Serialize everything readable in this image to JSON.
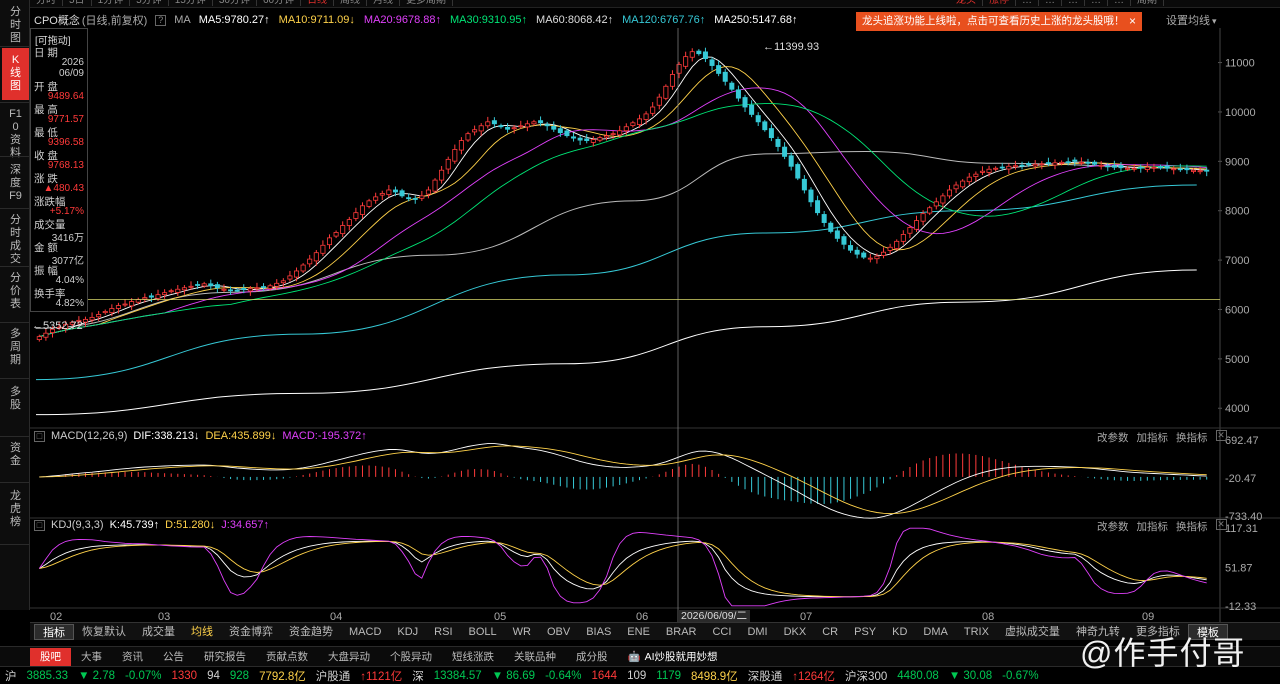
{
  "top_tabs": [
    "分时",
    "5日",
    "1分钟",
    "5分钟",
    "15分钟",
    "30分钟",
    "60分钟",
    "日线",
    "周线",
    "月线",
    "更多周期"
  ],
  "top_tabs_active": 7,
  "right_tabs": [
    "龙头",
    "涨停",
    "…",
    "…",
    "…",
    "…",
    "…",
    "周期"
  ],
  "left_nav": [
    {
      "label": "分时图",
      "active": false
    },
    {
      "label": "K线图",
      "active": true
    },
    {
      "label": "F10资料",
      "active": false
    },
    {
      "label": "深度F9",
      "active": false
    },
    {
      "label": "分时成交",
      "active": false
    },
    {
      "label": "分价表",
      "active": false
    },
    {
      "label": "多周期",
      "active": false
    },
    {
      "label": "多股",
      "active": false
    },
    {
      "label": "资金",
      "active": false
    },
    {
      "label": "龙虎榜",
      "active": false
    }
  ],
  "ma_legend": {
    "name": "CPO概念",
    "mode": "(日线,前复权)",
    "ma_label": "MA",
    "items": [
      {
        "text": "MA5:9780.27",
        "arrow": "↑",
        "color": "#ffffff"
      },
      {
        "text": "MA10:9711.09",
        "arrow": "↓",
        "color": "#ffd24a"
      },
      {
        "text": "MA20:9678.88",
        "arrow": "↑",
        "color": "#e040fb"
      },
      {
        "text": "MA30:9310.95",
        "arrow": "↑",
        "color": "#00e676"
      },
      {
        "text": "MA60:8068.42",
        "arrow": "↑",
        "color": "#dddddd"
      },
      {
        "text": "MA120:6767.76",
        "arrow": "↑",
        "color": "#36c9d6"
      },
      {
        "text": "MA250:5147.68",
        "arrow": "↑",
        "color": "#ffffff"
      }
    ]
  },
  "notice": {
    "text": "龙头追涨功能上线啦，点击可查看历史上涨的龙头股哦！",
    "close": "×"
  },
  "set_ma": "设置均线",
  "infobox": {
    "badge": "[可拖动]",
    "rows": [
      {
        "label": "日 期",
        "value": "2026",
        "value2": "06/09",
        "color": "white"
      },
      {
        "label": "开 盘",
        "value": "9489.64",
        "color": "red"
      },
      {
        "label": "最 高",
        "value": "9771.57",
        "color": "red"
      },
      {
        "label": "最 低",
        "value": "9396.58",
        "color": "red"
      },
      {
        "label": "收 盘",
        "value": "9768.13",
        "color": "red"
      },
      {
        "label": "涨 跌",
        "value": "▲480.43",
        "color": "red"
      },
      {
        "label": "涨跌幅",
        "value": "+5.17%",
        "color": "red"
      },
      {
        "label": "成交量",
        "value": "3416万",
        "color": "white"
      },
      {
        "label": "金 额",
        "value": "3077亿",
        "color": "white"
      },
      {
        "label": "振 幅",
        "value": "4.04%",
        "color": "white"
      },
      {
        "label": "换手率",
        "value": "4.82%",
        "color": "white"
      }
    ]
  },
  "chart_data": [
    {
      "type": "candlestick",
      "title": "CPO概念 (日线,前复权)",
      "y_ticks": [
        11000,
        10000,
        9000,
        8000,
        7000,
        6000,
        5000,
        4000
      ],
      "ylim": [
        3600,
        11700
      ],
      "x_ticks": [
        "02",
        "03",
        "04",
        "05",
        "06",
        "07",
        "08",
        "09"
      ],
      "high_label": "11399.93",
      "low_label": "5352.72",
      "crosshair_date": "2026/06/09/二",
      "crosshair_price_line": 6200,
      "close": [
        5450,
        5520,
        5600,
        5640,
        5700,
        5740,
        5780,
        5800,
        5840,
        5900,
        5960,
        6020,
        6080,
        6110,
        6160,
        6200,
        6240,
        6250,
        6300,
        6340,
        6380,
        6410,
        6440,
        6470,
        6500,
        6520,
        6480,
        6440,
        6410,
        6380,
        6390,
        6400,
        6420,
        6440,
        6460,
        6480,
        6530,
        6580,
        6680,
        6780,
        6900,
        7020,
        7150,
        7300,
        7450,
        7560,
        7700,
        7820,
        7960,
        8100,
        8200,
        8280,
        8350,
        8420,
        8380,
        8300,
        8260,
        8240,
        8300,
        8420,
        8620,
        8820,
        9040,
        9240,
        9420,
        9560,
        9640,
        9720,
        9800,
        9760,
        9700,
        9650,
        9680,
        9720,
        9760,
        9800,
        9780,
        9720,
        9650,
        9580,
        9520,
        9470,
        9430,
        9420,
        9440,
        9480,
        9520,
        9560,
        9620,
        9700,
        9780,
        9860,
        9960,
        10100,
        10300,
        10520,
        10760,
        10960,
        11120,
        11220,
        11180,
        11080,
        10940,
        10780,
        10620,
        10460,
        10280,
        10100,
        9950,
        9800,
        9640,
        9480,
        9300,
        9100,
        8900,
        8660,
        8420,
        8180,
        7960,
        7760,
        7580,
        7440,
        7320,
        7200,
        7120,
        7060,
        7040,
        7080,
        7160,
        7260,
        7380,
        7520,
        7660,
        7800,
        7940,
        8060,
        8180,
        8300,
        8420,
        8520,
        8600,
        8680,
        8740,
        8800,
        8840,
        8860,
        8880,
        8900,
        8910,
        8920,
        8930,
        8940,
        8950,
        8960,
        8970,
        8980,
        8990,
        9000,
        8980,
        8960,
        8940,
        8920,
        8900,
        8880,
        8870,
        8860,
        8860,
        8870,
        8880,
        8880,
        8870,
        8860,
        8850,
        8840,
        8830,
        8820,
        8810,
        8800
      ],
      "ma_series": [
        {
          "name": "MA60",
          "color": "#bbbbbb",
          "start": 6100,
          "points": [
            [
              0,
              5620
            ],
            [
              30,
              6350
            ],
            [
              60,
              7100
            ],
            [
              90,
              8200
            ],
            [
              110,
              9150
            ],
            [
              125,
              9200
            ],
            [
              145,
              8960
            ],
            [
              175,
              8860
            ]
          ]
        },
        {
          "name": "MA120",
          "color": "#36c9d6",
          "start": 5000,
          "points": [
            [
              0,
              4580
            ],
            [
              40,
              5500
            ],
            [
              80,
              6700
            ],
            [
              110,
              7550
            ],
            [
              140,
              8000
            ],
            [
              175,
              8520
            ]
          ]
        },
        {
          "name": "MA250",
          "color": "#ffffff",
          "points": [
            [
              0,
              3870
            ],
            [
              40,
              4300
            ],
            [
              80,
              4900
            ],
            [
              110,
              5650
            ],
            [
              140,
              6150
            ],
            [
              175,
              6800
            ]
          ]
        }
      ]
    },
    {
      "type": "macd",
      "header": "MACD(12,26,9)",
      "dif": "DIF:338.213",
      "dif_arrow": "↓",
      "dea": "DEA:435.899",
      "dea_arrow": "↓",
      "macd": "MACD:-195.372",
      "macd_arrow": "↑",
      "y_ticks": [
        "692.47",
        "-20.47",
        "-733.40"
      ],
      "ylim": [
        -733.4,
        692.47
      ]
    },
    {
      "type": "kdj",
      "header": "KDJ(9,3,3)",
      "k": "K:45.739",
      "k_arrow": "↑",
      "d": "D:51.280",
      "d_arrow": "↓",
      "j": "J:34.657",
      "j_arrow": "↑",
      "y_ticks": [
        "117.31",
        "51.87",
        "-12.33"
      ],
      "ylim": [
        -12.33,
        117.31
      ]
    }
  ],
  "panel_buttons": [
    "改参数",
    "加指标",
    "换指标"
  ],
  "indicator_tabs": [
    "指标",
    "恢复默认",
    "成交量",
    "均线",
    "资金博弈",
    "资金趋势",
    "MACD",
    "KDJ",
    "RSI",
    "BOLL",
    "WR",
    "OBV",
    "BIAS",
    "ENE",
    "BRAR",
    "CCI",
    "DMI",
    "DKX",
    "CR",
    "PSY",
    "KD",
    "DMA",
    "TRIX",
    "虚拟成交量",
    "神奇九转",
    "更多指标",
    "模板"
  ],
  "info_tabs": [
    "股吧",
    "大事",
    "资讯",
    "公告",
    "研究报告",
    "贡献点数",
    "大盘异动",
    "个股异动",
    "短线涨跌",
    "关联品种",
    "成分股"
  ],
  "ai_text": "AI炒股就用妙想",
  "watermark": "@作手付哥",
  "ticker": [
    {
      "text": "沪",
      "color": "#d0d0d0"
    },
    {
      "text": "3885.33",
      "color": "#00c853"
    },
    {
      "text": "▼ 2.78",
      "color": "#00c853"
    },
    {
      "text": "-0.07%",
      "color": "#00c853"
    },
    {
      "text": "1330",
      "color": "#ff3a3a"
    },
    {
      "text": "94",
      "color": "#d0d0d0"
    },
    {
      "text": "928",
      "color": "#00c853"
    },
    {
      "text": "7792.8亿",
      "color": "#ffd24a"
    },
    {
      "text": "沪股通",
      "color": "#d0d0d0"
    },
    {
      "text": "↑1121亿",
      "color": "#ff3a3a"
    },
    {
      "text": "深",
      "color": "#d0d0d0"
    },
    {
      "text": "13384.57",
      "color": "#00c853"
    },
    {
      "text": "▼ 86.69",
      "color": "#00c853"
    },
    {
      "text": "-0.64%",
      "color": "#00c853"
    },
    {
      "text": "1644",
      "color": "#ff3a3a"
    },
    {
      "text": "109",
      "color": "#d0d0d0"
    },
    {
      "text": "1179",
      "color": "#00c853"
    },
    {
      "text": "8498.9亿",
      "color": "#ffd24a"
    },
    {
      "text": "深股通",
      "color": "#d0d0d0"
    },
    {
      "text": "↑1264亿",
      "color": "#ff3a3a"
    },
    {
      "text": "沪深300",
      "color": "#d0d0d0"
    },
    {
      "text": "4480.08",
      "color": "#00c853"
    },
    {
      "text": "▼ 30.08",
      "color": "#00c853"
    },
    {
      "text": "-0.67%",
      "color": "#00c853"
    }
  ]
}
